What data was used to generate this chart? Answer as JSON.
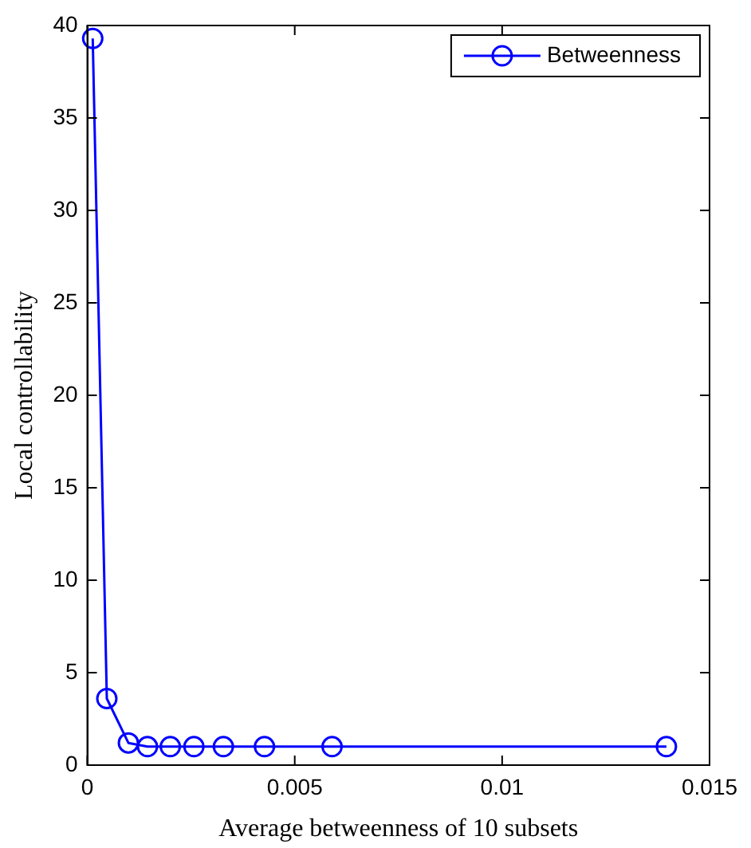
{
  "chart_data": {
    "type": "line",
    "xlabel": "Average betweenness of 10 subsets",
    "ylabel": "Local controllability",
    "series": [
      {
        "name": "Betweenness",
        "color": "#0000ff",
        "x": [
          0.00013,
          0.00047,
          0.00099,
          0.00145,
          0.002,
          0.00257,
          0.00328,
          0.00427,
          0.0059,
          0.01396
        ],
        "values": [
          39.3,
          3.6,
          1.2,
          1,
          1,
          1,
          1,
          1,
          1,
          1
        ]
      }
    ],
    "xlim": [
      0,
      0.015
    ],
    "xticks": [
      0,
      0.005,
      0.01,
      0.015
    ],
    "ylim": [
      0,
      40
    ],
    "yticks": [
      0,
      5,
      10,
      15,
      20,
      25,
      30,
      35,
      40
    ],
    "grid": false,
    "legend": "top right",
    "marker": "circle",
    "line_style": "solid"
  }
}
